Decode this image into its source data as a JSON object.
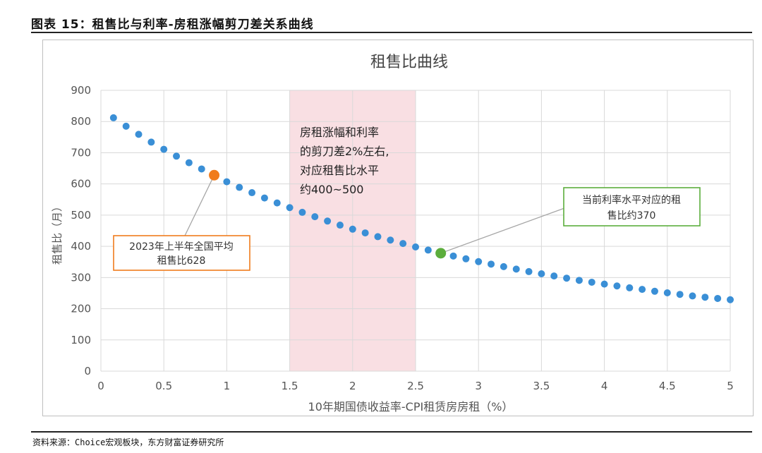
{
  "figure_title": "图表 15：租售比与利率-房租涨幅剪刀差关系曲线",
  "source_note": "资料来源：Choice宏观板块，东方财富证券研究所",
  "chart_data": {
    "type": "scatter",
    "title": "租售比曲线",
    "xlabel": "10年期国债收益率-CPI租赁房房租（%）",
    "ylabel": "租售比（月）",
    "xlim": [
      0,
      5
    ],
    "ylim": [
      0,
      900
    ],
    "x_ticks": [
      0,
      0.5,
      1,
      1.5,
      2,
      2.5,
      3,
      3.5,
      4,
      4.5,
      5
    ],
    "x_tick_labels": [
      "0",
      "0.5",
      "1",
      "1.5",
      "2",
      "2.5",
      "3",
      "3.5",
      "4",
      "4.5",
      "5"
    ],
    "y_ticks": [
      0,
      100,
      200,
      300,
      400,
      500,
      600,
      700,
      800,
      900
    ],
    "y_tick_labels": [
      "0",
      "100",
      "200",
      "300",
      "400",
      "500",
      "600",
      "700",
      "800",
      "900"
    ],
    "grid": true,
    "series": [
      {
        "color": "#3a8fd6",
        "x": [
          0.1,
          0.2,
          0.3,
          0.4,
          0.5,
          0.6,
          0.7,
          0.8,
          0.9,
          1.0,
          1.1,
          1.2,
          1.3,
          1.4,
          1.5,
          1.6,
          1.7,
          1.8,
          1.9,
          2.0,
          2.1,
          2.2,
          2.3,
          2.4,
          2.5,
          2.6,
          2.7,
          2.8,
          2.9,
          3.0,
          3.1,
          3.2,
          3.3,
          3.4,
          3.5,
          3.6,
          3.7,
          3.8,
          3.9,
          4.0,
          4.1,
          4.2,
          4.3,
          4.4,
          4.5,
          4.6,
          4.7,
          4.8,
          4.9,
          5.0
        ],
        "y": [
          812,
          785,
          759,
          734,
          711,
          689,
          668,
          648,
          628,
          607,
          589,
          572,
          555,
          539,
          524,
          509,
          495,
          481,
          468,
          455,
          443,
          431,
          420,
          409,
          398,
          388,
          378,
          369,
          360,
          351,
          343,
          335,
          327,
          319,
          312,
          305,
          298,
          291,
          285,
          279,
          273,
          267,
          262,
          256,
          251,
          246,
          241,
          237,
          233,
          229
        ]
      }
    ],
    "highlight_points": [
      {
        "x": 0.9,
        "y": 628,
        "color": "#f07c1d"
      },
      {
        "x": 2.7,
        "y": 378,
        "color": "#5cad3c"
      }
    ],
    "shaded_region": {
      "x_range": [
        1.5,
        2.5
      ],
      "color": "#f9dfe3"
    },
    "annotations": {
      "region": {
        "lines": [
          "房租涨幅和利率",
          "的剪刀差2%左右,",
          "对应租售比水平",
          "约400~500"
        ]
      },
      "orange": {
        "lines": [
          "2023年上半年全国平均",
          "租售比628"
        ],
        "border": "#f07c1d"
      },
      "green": {
        "lines": [
          "当前利率水平对应的租",
          "售比约370"
        ],
        "border": "#5cad3c"
      }
    }
  }
}
